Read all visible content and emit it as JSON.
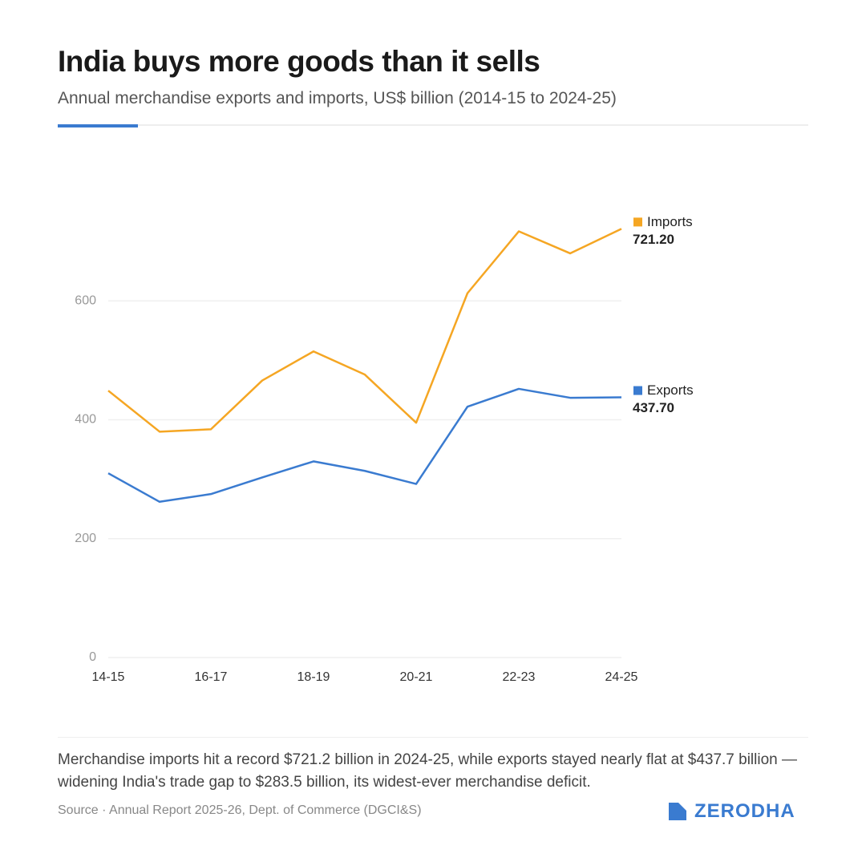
{
  "chart_data": {
    "type": "line",
    "title": "India buys more goods than it sells",
    "subtitle": "Annual merchandise exports and imports, US$ billion (2014-15 to 2024-25)",
    "categories": [
      "14-15",
      null,
      "16-17",
      null,
      "18-19",
      null,
      "20-21",
      null,
      "22-23",
      null,
      "24-25"
    ],
    "series": [
      {
        "name": "Imports",
        "color": "#f5a623",
        "values": [
          449,
          380,
          384,
          466,
          515,
          476,
          395,
          613,
          717,
          680,
          721.2
        ],
        "value_labels": [
          null,
          null,
          null,
          null,
          null,
          null,
          null,
          null,
          null,
          null,
          "721.20"
        ]
      },
      {
        "name": "Exports",
        "color": "#3a7bd0",
        "values": [
          310,
          262,
          275,
          303,
          330,
          314,
          292,
          422,
          452,
          437,
          437.7
        ],
        "value_labels": [
          null,
          null,
          null,
          null,
          null,
          null,
          null,
          null,
          null,
          null,
          "437.70"
        ]
      }
    ],
    "ylim": [
      0,
      800
    ],
    "yticks": [
      0,
      200,
      400,
      600
    ],
    "grid": true,
    "note": "Merchandise imports hit a record $721.2 billion in 2024-25, while exports stayed nearly flat at $437.7 billion — widening India's trade gap to $283.5 billion, its widest-ever merchandise deficit.",
    "source": "Source · Annual Report 2025-26, Dept. of Commerce (DGCI&S)",
    "brand": "ZERODHA"
  }
}
